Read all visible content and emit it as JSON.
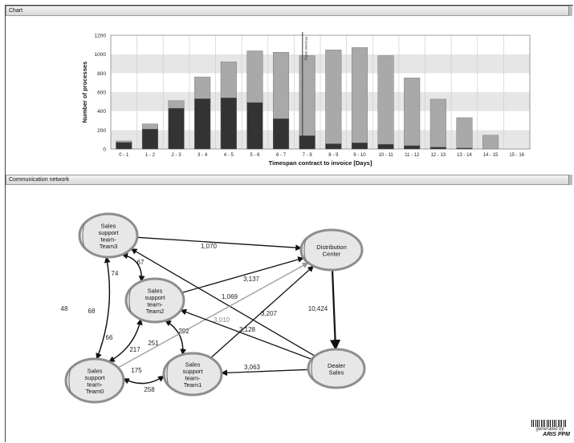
{
  "panels": {
    "chart_title": "Chart",
    "network_title": "Communication network"
  },
  "chart_data": {
    "type": "bar",
    "categories": [
      "0 - 1",
      "1 - 2",
      "2 - 3",
      "3 - 4",
      "4 - 5",
      "5 - 6",
      "6 - 7",
      "7 - 8",
      "8 - 9",
      "9 - 10",
      "10 - 11",
      "11 - 12",
      "12 - 13",
      "13 - 14",
      "14 - 15",
      "15 - 16"
    ],
    "series": [
      {
        "values": [
          85,
          265,
          510,
          760,
          920,
          1035,
          1020,
          985,
          1045,
          1070,
          985,
          750,
          525,
          330,
          145,
          0
        ],
        "color": "#a9a9a9"
      },
      {
        "values": [
          70,
          210,
          430,
          530,
          540,
          490,
          320,
          140,
          55,
          65,
          50,
          35,
          20,
          10,
          0,
          0
        ],
        "color": "#333333"
      }
    ],
    "xlabel": "Timespan contract to invoice [Days]",
    "ylabel": "Number of processes",
    "ylim": [
      0,
      1200
    ],
    "yticks": [
      0,
      200,
      400,
      600,
      800,
      1000,
      1200
    ],
    "marker": {
      "category_index": 7,
      "label": "Process rating"
    },
    "grid": "horizontal bands"
  },
  "network": {
    "nodes": [
      {
        "id": "team3",
        "label": "Sales support team- Team3"
      },
      {
        "id": "team2",
        "label": "Sales support team- Team2"
      },
      {
        "id": "team0",
        "label": "Sales support team- Team0"
      },
      {
        "id": "team1",
        "label": "Sales support team- Team1"
      },
      {
        "id": "dc",
        "label": "Distribution Center"
      },
      {
        "id": "dealer",
        "label": "Dealer Sales"
      }
    ],
    "edges": [
      {
        "from": "team3",
        "to": "dc",
        "value": "1,070"
      },
      {
        "from": "team2",
        "to": "team3",
        "value": "67"
      },
      {
        "from": "team3",
        "to": "team2",
        "value": "74"
      },
      {
        "from": "team3",
        "to": "team0",
        "value": "48"
      },
      {
        "from": "team0",
        "to": "team3",
        "value": "68"
      },
      {
        "from": "team2",
        "to": "team0",
        "value": "66"
      },
      {
        "from": "team0",
        "to": "team2",
        "value": "217"
      },
      {
        "from": "team2",
        "to": "team1",
        "value": "251"
      },
      {
        "from": "team1",
        "to": "team2",
        "value": "292"
      },
      {
        "from": "team2",
        "to": "dc",
        "value": "3,137"
      },
      {
        "from": "dealer",
        "to": "team3",
        "value": "1,069"
      },
      {
        "from": "team0",
        "to": "dc",
        "value": "3,010"
      },
      {
        "from": "team1",
        "to": "dc",
        "value": "3,207"
      },
      {
        "from": "dealer",
        "to": "team2",
        "value": "3,128"
      },
      {
        "from": "dc",
        "to": "dealer",
        "value": "10,424"
      },
      {
        "from": "dealer",
        "to": "team1",
        "value": "3,063"
      },
      {
        "from": "team0",
        "to": "team1",
        "value": "175"
      },
      {
        "from": "team1",
        "to": "team0",
        "value": "258"
      }
    ]
  },
  "watermark": {
    "line1": "generated by",
    "line2": "ARIS PPM"
  }
}
